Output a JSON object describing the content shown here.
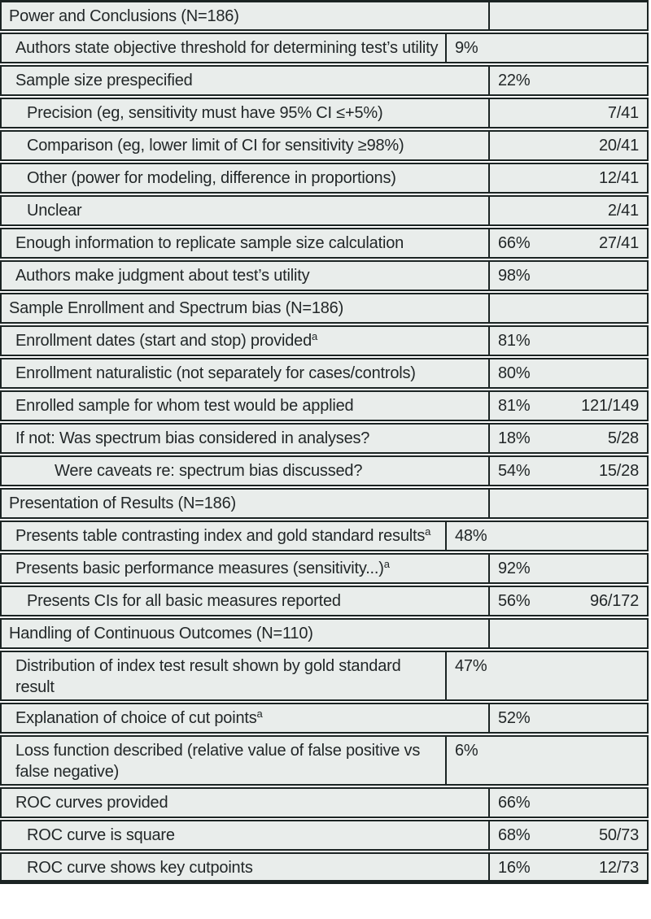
{
  "colors": {
    "row_background": "#e9edeb",
    "border": "#1b2423",
    "text": "#222728",
    "page_background": "#ffffff"
  },
  "table": {
    "rows": [
      {
        "label": "Power and Conclusions (N=186)",
        "section": true
      },
      {
        "label": "Authors state objective threshold for determining test’s utility",
        "indent": 1,
        "pct": "9%",
        "wrap": true
      },
      {
        "label": "Sample size prespecified",
        "indent": 1,
        "pct": "22%"
      },
      {
        "label": "Precision (eg, sensitivity must have 95% CI ≤+5%)",
        "indent": 2,
        "frac": "7/41"
      },
      {
        "label": "Comparison (eg, lower limit of CI for sensitivity ≥98%)",
        "indent": 2,
        "frac": "20/41"
      },
      {
        "label": "Other (power for modeling, difference in proportions)",
        "indent": 2,
        "frac": "12/41"
      },
      {
        "label": "Unclear",
        "indent": 2,
        "frac": "2/41"
      },
      {
        "label": "Enough information to replicate sample size calculation",
        "indent": 1,
        "pct": "66%",
        "frac": "27/41"
      },
      {
        "label": "Authors make judgment about test’s utility",
        "indent": 1,
        "pct": "98%"
      },
      {
        "label": "Sample Enrollment and Spectrum bias (N=186)",
        "section": true
      },
      {
        "label": "Enrollment dates (start and stop) provided",
        "sup": "a",
        "indent": 1,
        "pct": "81%"
      },
      {
        "label": "Enrollment naturalistic (not separately for cases/controls)",
        "indent": 1,
        "pct": "80%"
      },
      {
        "label": "Enrolled sample for whom test would be applied",
        "indent": 1,
        "pct": "81%",
        "frac": "121/149"
      },
      {
        "label": "If not: Was spectrum bias considered in analyses?",
        "indent": 1,
        "pct": "18%",
        "frac": "5/28"
      },
      {
        "label": "Were caveats re: spectrum bias discussed?",
        "indent": 3,
        "pct": "54%",
        "frac": "15/28"
      },
      {
        "label": "Presentation of Results (N=186)",
        "section": true
      },
      {
        "label": "Presents table contrasting index and gold standard results",
        "sup": "a",
        "indent": 1,
        "pct": "48%",
        "wrap": true
      },
      {
        "label": "Presents basic performance measures (sensitivity...)",
        "sup": "a",
        "indent": 1,
        "pct": "92%"
      },
      {
        "label": "Presents CIs for all basic measures reported",
        "indent": 2,
        "pct": "56%",
        "frac": "96/172"
      },
      {
        "label": "Handling of Continuous Outcomes (N=110)",
        "section": true
      },
      {
        "label": "Distribution of index test result shown by gold standard result",
        "indent": 1,
        "pct": "47%",
        "wrap": true
      },
      {
        "label": "Explanation of choice of cut points",
        "sup": "a",
        "indent": 1,
        "pct": "52%"
      },
      {
        "label": "Loss function described (relative value of false positive vs false negative)",
        "indent": 1,
        "pct": "6%",
        "wrap": true
      },
      {
        "label": "ROC curves provided",
        "indent": 1,
        "pct": "66%"
      },
      {
        "label": "ROC curve is square",
        "indent": 2,
        "pct": "68%",
        "frac": "50/73"
      },
      {
        "label": "ROC curve shows key cutpoints",
        "indent": 2,
        "pct": "16%",
        "frac": "12/73"
      }
    ]
  }
}
